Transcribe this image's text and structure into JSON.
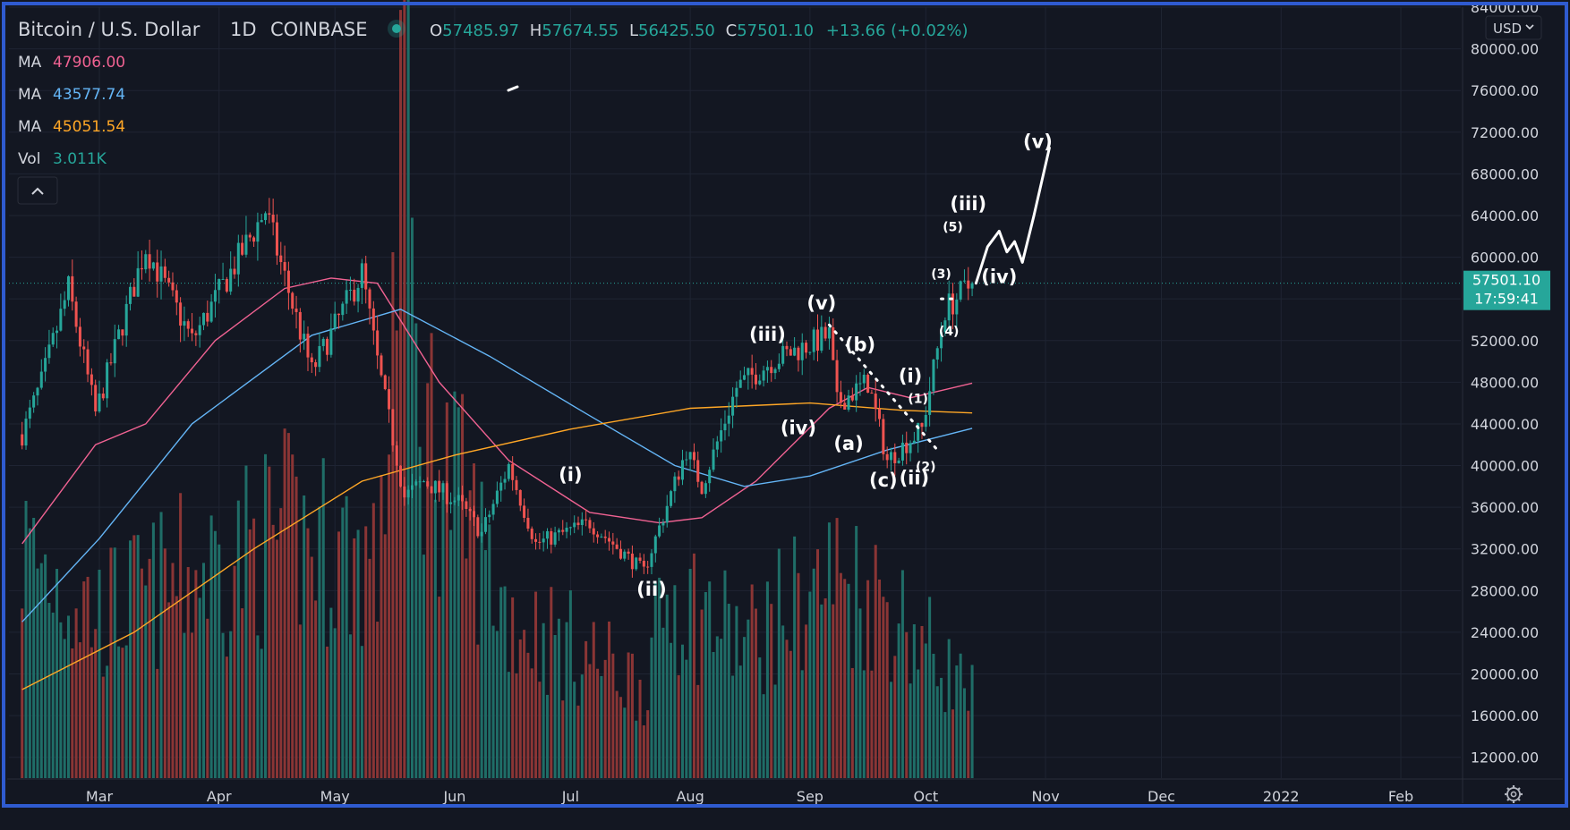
{
  "colors": {
    "background": "#131722",
    "border": "#2f5bd0",
    "grid": "#1f2433",
    "up": "#26a69a",
    "down": "#ef5350",
    "up_volume": "#1f6d67",
    "down_volume": "#8a3535",
    "ma1": "#f06292",
    "ma2": "#64b5f6",
    "ma3": "#ffa726",
    "text": "#d1d4dc",
    "label_bg": "#26a69a"
  },
  "header": {
    "symbol": "Bitcoin / U.S. Dollar",
    "interval": "1D",
    "exchange": "COINBASE",
    "ohlc": {
      "o_label": "O",
      "o": "57485.97",
      "h_label": "H",
      "h": "57674.55",
      "l_label": "L",
      "l": "56425.50",
      "c_label": "C",
      "c": "57501.10",
      "change": "+13.66 (+0.02%)"
    }
  },
  "legend": [
    {
      "label": "MA",
      "value": "47906.00",
      "color": "#f06292"
    },
    {
      "label": "MA",
      "value": "43577.74",
      "color": "#64b5f6"
    },
    {
      "label": "MA",
      "value": "45051.54",
      "color": "#ffa726"
    },
    {
      "label": "Vol",
      "value": "3.011K",
      "color": "#26a69a"
    }
  ],
  "collapse_icon": "chevron-up-icon",
  "settings_icon": "gear-icon",
  "currency_selector": "USD",
  "last_price": {
    "price": "57501.10",
    "countdown": "17:59:41",
    "value": 57501.1
  },
  "chart_data": {
    "type": "candlestick",
    "ylim": [
      10000,
      84000
    ],
    "y_ticks": [
      "84000.00",
      "80000.00",
      "76000.00",
      "72000.00",
      "68000.00",
      "64000.00",
      "60000.00",
      "56000.00",
      "52000.00",
      "48000.00",
      "44000.00",
      "40000.00",
      "36000.00",
      "32000.00",
      "28000.00",
      "24000.00",
      "20000.00",
      "16000.00",
      "12000.00"
    ],
    "x_ticks": [
      "Mar",
      "Apr",
      "May",
      "Jun",
      "Jul",
      "Aug",
      "Sep",
      "Oct",
      "Nov",
      "Dec",
      "2022",
      "Feb"
    ],
    "x_tick_dates": [
      "2021-03-01",
      "2021-04-01",
      "2021-05-01",
      "2021-06-01",
      "2021-07-01",
      "2021-08-01",
      "2021-09-01",
      "2021-10-01",
      "2021-11-01",
      "2021-12-01",
      "2022-01-01",
      "2022-02-01"
    ],
    "price_anchors": [
      [
        "2021-02-09",
        43000
      ],
      [
        "2021-02-14",
        48000
      ],
      [
        "2021-02-21",
        57000
      ],
      [
        "2021-02-28",
        45000
      ],
      [
        "2021-03-13",
        61000
      ],
      [
        "2021-03-25",
        52000
      ],
      [
        "2021-04-13",
        64500
      ],
      [
        "2021-04-25",
        49000
      ],
      [
        "2021-05-08",
        58500
      ],
      [
        "2021-05-12",
        50000
      ],
      [
        "2021-05-19",
        37000
      ],
      [
        "2021-05-24",
        38500
      ],
      [
        "2021-06-02",
        36500
      ],
      [
        "2021-06-08",
        33500
      ],
      [
        "2021-06-15",
        40000
      ],
      [
        "2021-06-22",
        32500
      ],
      [
        "2021-07-06",
        34500
      ],
      [
        "2021-07-20",
        29800
      ],
      [
        "2021-07-31",
        41500
      ],
      [
        "2021-08-04",
        38000
      ],
      [
        "2021-08-13",
        47500
      ],
      [
        "2021-08-22",
        50000
      ],
      [
        "2021-09-06",
        52500
      ],
      [
        "2021-09-08",
        46000
      ],
      [
        "2021-09-16",
        48000
      ],
      [
        "2021-09-21",
        40500
      ],
      [
        "2021-09-30",
        43500
      ],
      [
        "2021-10-06",
        55000
      ],
      [
        "2021-10-13",
        57501
      ]
    ],
    "volume_anchors": [
      [
        "2021-02-09",
        8500
      ],
      [
        "2021-03-01",
        6000
      ],
      [
        "2021-04-18",
        9000
      ],
      [
        "2021-05-13",
        8000
      ],
      [
        "2021-05-19",
        29000
      ],
      [
        "2021-05-22",
        14000
      ],
      [
        "2021-06-15",
        6000
      ],
      [
        "2021-07-20",
        3500
      ],
      [
        "2021-07-27",
        7000
      ],
      [
        "2021-08-15",
        5000
      ],
      [
        "2021-09-07",
        7500
      ],
      [
        "2021-09-21",
        6500
      ],
      [
        "2021-10-13",
        3011
      ]
    ],
    "moving_averages": [
      {
        "name": "MA",
        "value": 47906.0,
        "points": [
          [
            "2021-02-09",
            32500
          ],
          [
            "2021-02-28",
            42000
          ],
          [
            "2021-03-13",
            44000
          ],
          [
            "2021-03-31",
            52000
          ],
          [
            "2021-04-18",
            57000
          ],
          [
            "2021-04-30",
            58000
          ],
          [
            "2021-05-12",
            57500
          ],
          [
            "2021-05-28",
            48000
          ],
          [
            "2021-06-15",
            40500
          ],
          [
            "2021-07-06",
            35500
          ],
          [
            "2021-07-24",
            34500
          ],
          [
            "2021-08-04",
            35000
          ],
          [
            "2021-08-18",
            38500
          ],
          [
            "2021-09-06",
            45500
          ],
          [
            "2021-09-16",
            47500
          ],
          [
            "2021-09-27",
            46500
          ],
          [
            "2021-10-13",
            47906
          ]
        ]
      },
      {
        "name": "MA",
        "value": 43577.74,
        "points": [
          [
            "2021-02-09",
            25000
          ],
          [
            "2021-03-01",
            33000
          ],
          [
            "2021-03-25",
            44000
          ],
          [
            "2021-04-25",
            52500
          ],
          [
            "2021-05-18",
            55000
          ],
          [
            "2021-06-10",
            50500
          ],
          [
            "2021-07-05",
            45000
          ],
          [
            "2021-07-28",
            40000
          ],
          [
            "2021-08-15",
            38000
          ],
          [
            "2021-09-01",
            39000
          ],
          [
            "2021-09-21",
            41500
          ],
          [
            "2021-10-13",
            43578
          ]
        ]
      },
      {
        "name": "MA",
        "value": 45051.54,
        "points": [
          [
            "2021-02-09",
            18500
          ],
          [
            "2021-03-10",
            24000
          ],
          [
            "2021-04-10",
            32000
          ],
          [
            "2021-05-08",
            38500
          ],
          [
            "2021-06-01",
            41000
          ],
          [
            "2021-07-01",
            43500
          ],
          [
            "2021-08-01",
            45500
          ],
          [
            "2021-09-01",
            46000
          ],
          [
            "2021-09-25",
            45300
          ],
          [
            "2021-10-13",
            45052
          ]
        ]
      }
    ],
    "annotations": [
      {
        "text": "(i)",
        "x": "2021-07-01",
        "y": 38500
      },
      {
        "text": "(ii)",
        "x": "2021-07-22",
        "y": 27500
      },
      {
        "text": "(iii)",
        "x": "2021-08-21",
        "y": 52000
      },
      {
        "text": "(iv)",
        "x": "2021-08-29",
        "y": 43000
      },
      {
        "text": "(v)",
        "x": "2021-09-04",
        "y": 55000
      },
      {
        "text": "(a)",
        "x": "2021-09-11",
        "y": 41500
      },
      {
        "text": "(b)",
        "x": "2021-09-14",
        "y": 51000
      },
      {
        "text": "(c)",
        "x": "2021-09-20",
        "y": 38000
      },
      {
        "text": "(i)",
        "x": "2021-09-27",
        "y": 48000
      },
      {
        "text": "(1)",
        "x": "2021-09-29",
        "y": 46000
      },
      {
        "text": "(ii)",
        "x": "2021-09-28",
        "y": 38200
      },
      {
        "text": "(2)",
        "x": "2021-10-01",
        "y": 39500
      },
      {
        "text": "(3)",
        "x": "2021-10-05",
        "y": 58000
      },
      {
        "text": "(4)",
        "x": "2021-10-07",
        "y": 52500
      },
      {
        "text": "(5)",
        "x": "2021-10-08",
        "y": 62500
      },
      {
        "text": "(iii)",
        "x": "2021-10-12",
        "y": 64500
      },
      {
        "text": "(iv)",
        "x": "2021-10-20",
        "y": 57500
      },
      {
        "text": "(v)",
        "x": "2021-10-30",
        "y": 70500
      }
    ],
    "projection": [
      [
        "2021-10-14",
        57500
      ],
      [
        "2021-10-17",
        61000
      ],
      [
        "2021-10-20",
        62500
      ],
      [
        "2021-10-22",
        60500
      ],
      [
        "2021-10-24",
        61500
      ],
      [
        "2021-10-26",
        59500
      ],
      [
        "2021-10-29",
        64000
      ],
      [
        "2021-11-02",
        70500
      ]
    ],
    "dotted_trendline": [
      [
        "2021-09-06",
        53500
      ],
      [
        "2021-10-04",
        41500
      ]
    ],
    "dotted_top": [
      [
        "2021-10-05",
        56000
      ],
      [
        "2021-10-09",
        56000
      ]
    ]
  }
}
